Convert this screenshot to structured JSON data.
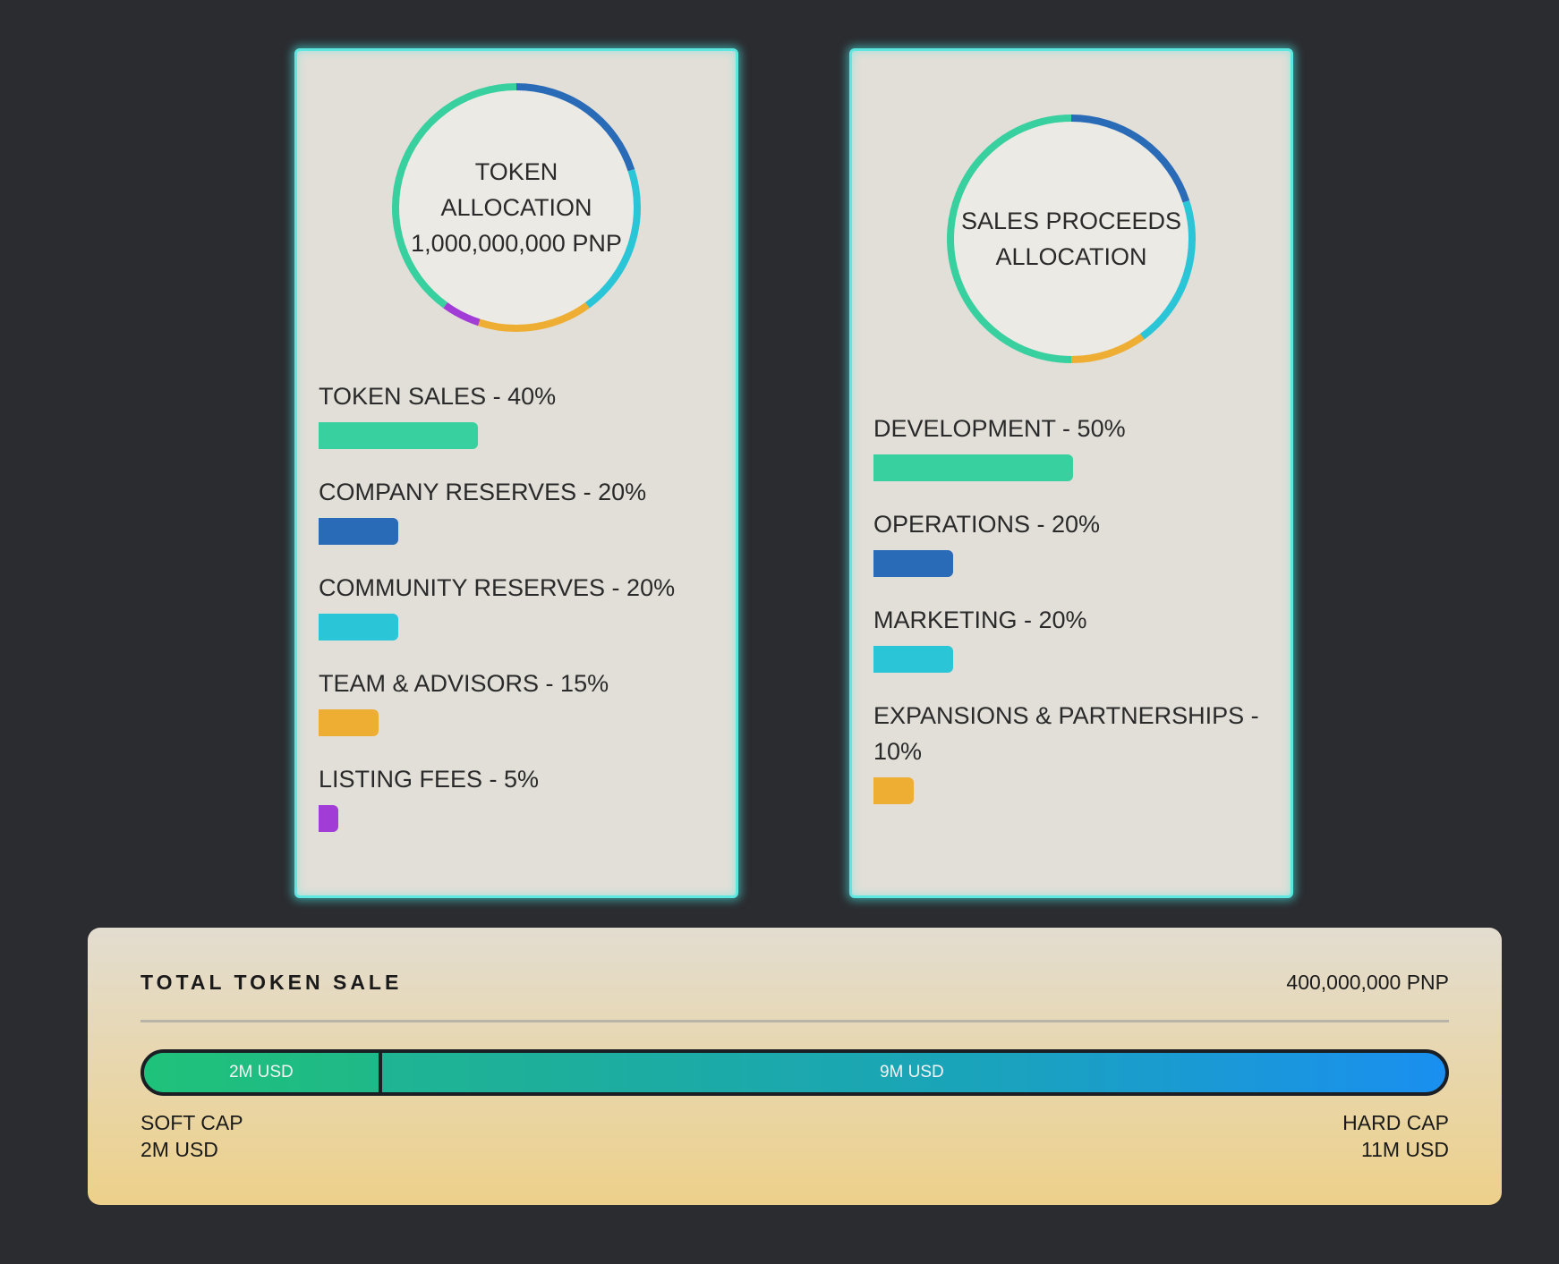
{
  "token_card": {
    "ring_lines": [
      "TOKEN",
      "ALLOCATION",
      "1,000,000,000 PNP"
    ],
    "items": [
      {
        "label": "TOKEN SALES - 40%",
        "percent": 40,
        "color": "#39d0a0"
      },
      {
        "label": "COMPANY RESERVES - 20%",
        "percent": 20,
        "color": "#2a6bb8"
      },
      {
        "label": "COMMUNITY RESERVES - 20%",
        "percent": 20,
        "color": "#2ac6d8"
      },
      {
        "label": "TEAM & ADVISORS - 15%",
        "percent": 15,
        "color": "#edae33"
      },
      {
        "label": "LISTING FEES - 5%",
        "percent": 5,
        "color": "#a23cd6"
      }
    ]
  },
  "sales_card": {
    "ring_lines": [
      "SALES PROCEEDS",
      "ALLOCATION"
    ],
    "items": [
      {
        "label": "DEVELOPMENT - 50%",
        "percent": 50,
        "color": "#39d0a0"
      },
      {
        "label": "OPERATIONS - 20%",
        "percent": 20,
        "color": "#2a6bb8"
      },
      {
        "label": "MARKETING - 20%",
        "percent": 20,
        "color": "#2ac6d8"
      },
      {
        "label": "EXPANSIONS & PARTNERSHIPS - 10%",
        "percent": 10,
        "color": "#edae33"
      }
    ]
  },
  "sale": {
    "title": "TOTAL TOKEN SALE",
    "amount": "400,000,000 PNP",
    "soft_segment_label": "2M USD",
    "hard_segment_label": "9M USD",
    "soft_cap_fraction": 0.18,
    "soft_cap_label": "SOFT CAP",
    "soft_cap_value": "2M USD",
    "hard_cap_label": "HARD CAP",
    "hard_cap_value": "11M USD"
  }
}
